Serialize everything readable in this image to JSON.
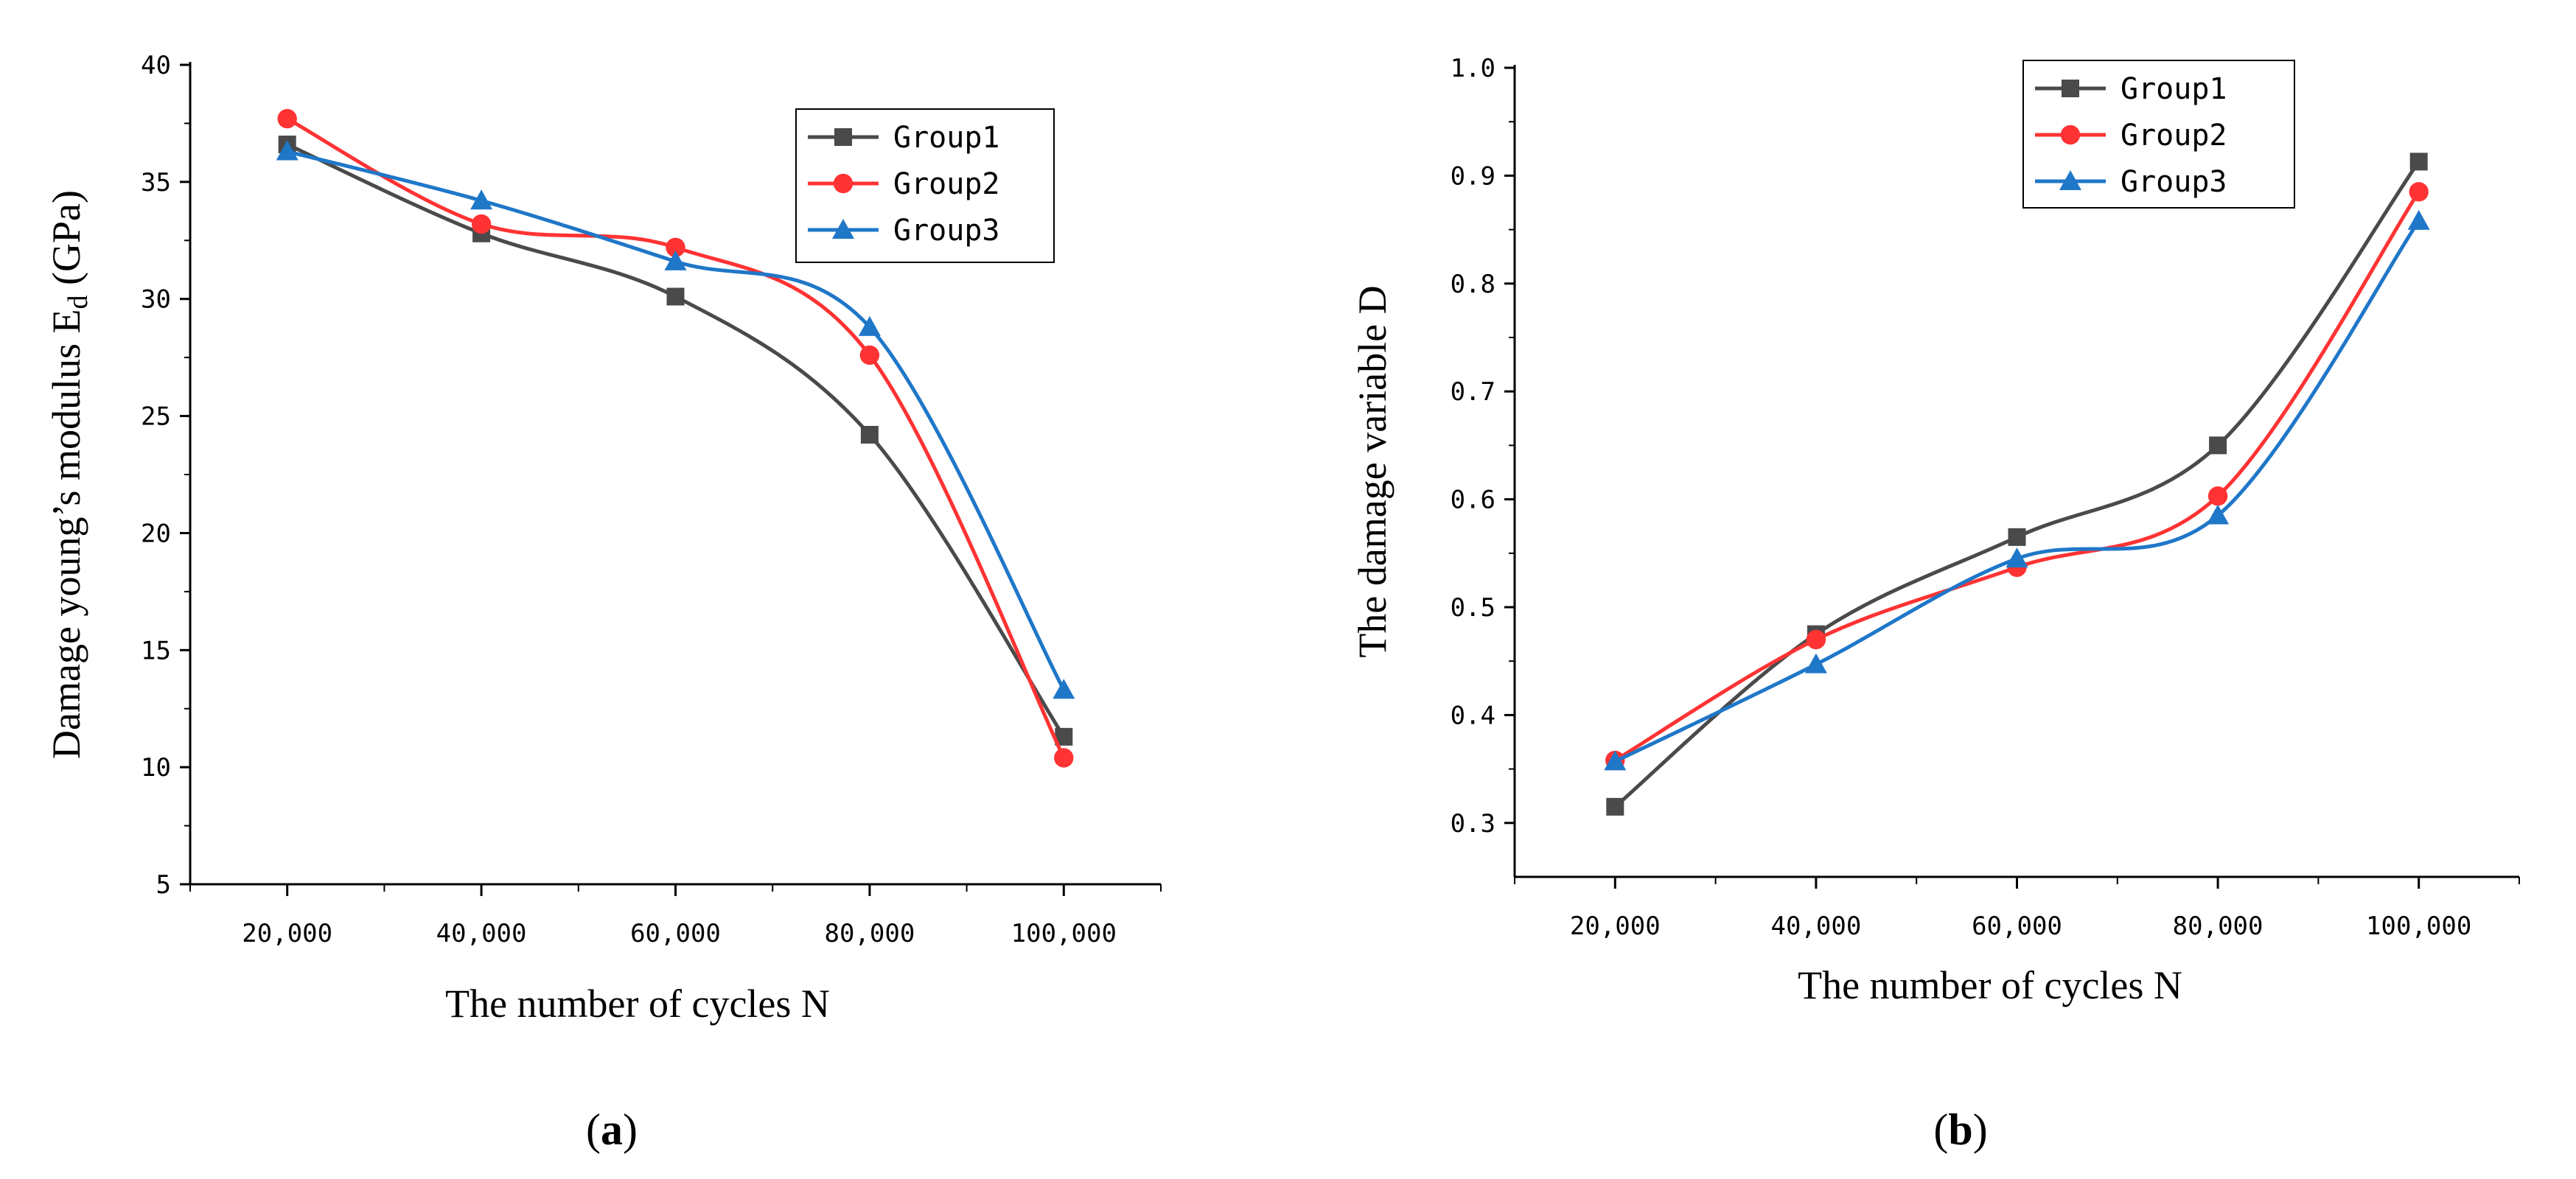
{
  "chart_data": [
    {
      "panel": "a",
      "type": "line",
      "caption": "(a)",
      "caption_parts": [
        "(",
        "a",
        ")"
      ],
      "xlabel": "The number of cycles N",
      "ylabel": "Damage young’s modulus E",
      "ylabel_sub": "d",
      "ylabel_unit": " (GPa)",
      "categories": [
        "20,000",
        "40,000",
        "60,000",
        "80,000",
        "100,000"
      ],
      "x": [
        20000,
        40000,
        60000,
        80000,
        100000
      ],
      "xlim": [
        10000,
        110000
      ],
      "ylim": [
        5,
        40
      ],
      "yticks": [
        5,
        10,
        15,
        20,
        25,
        30,
        35,
        40
      ],
      "ytick_labels": [
        "5",
        "10",
        "15",
        "20",
        "25",
        "30",
        "35",
        "40"
      ],
      "legend_position": "top-right",
      "series": [
        {
          "name": "Group1",
          "marker": "square",
          "color": "#4a4a4a",
          "values": [
            36.6,
            32.8,
            30.1,
            24.2,
            11.3
          ]
        },
        {
          "name": "Group2",
          "marker": "circle",
          "color": "#ff3333",
          "values": [
            37.7,
            33.2,
            32.2,
            27.6,
            10.4
          ]
        },
        {
          "name": "Group3",
          "marker": "triangle",
          "color": "#1f77c8",
          "values": [
            36.3,
            34.2,
            31.6,
            28.8,
            13.3
          ]
        }
      ]
    },
    {
      "panel": "b",
      "type": "line",
      "caption": "(b)",
      "caption_parts": [
        "(",
        "b",
        ")"
      ],
      "xlabel": "The number of cycles N",
      "ylabel": "The damage variable D",
      "categories": [
        "20,000",
        "40,000",
        "60,000",
        "80,000",
        "100,000"
      ],
      "x": [
        20000,
        40000,
        60000,
        80000,
        100000
      ],
      "xlim": [
        10000,
        110000
      ],
      "ylim": [
        0.25,
        1.0
      ],
      "yticks": [
        0.3,
        0.4,
        0.5,
        0.6,
        0.7,
        0.8,
        0.9,
        1.0
      ],
      "ytick_labels": [
        "0.3",
        "0.4",
        "0.5",
        "0.6",
        "0.7",
        "0.8",
        "0.9",
        "1.0"
      ],
      "legend_position": "top-left",
      "series": [
        {
          "name": "Group1",
          "marker": "square",
          "color": "#4a4a4a",
          "values": [
            0.315,
            0.475,
            0.565,
            0.65,
            0.913
          ]
        },
        {
          "name": "Group2",
          "marker": "circle",
          "color": "#ff3333",
          "values": [
            0.358,
            0.47,
            0.537,
            0.603,
            0.885
          ]
        },
        {
          "name": "Group3",
          "marker": "triangle",
          "color": "#1f77c8",
          "values": [
            0.357,
            0.447,
            0.545,
            0.585,
            0.858
          ]
        }
      ]
    }
  ]
}
